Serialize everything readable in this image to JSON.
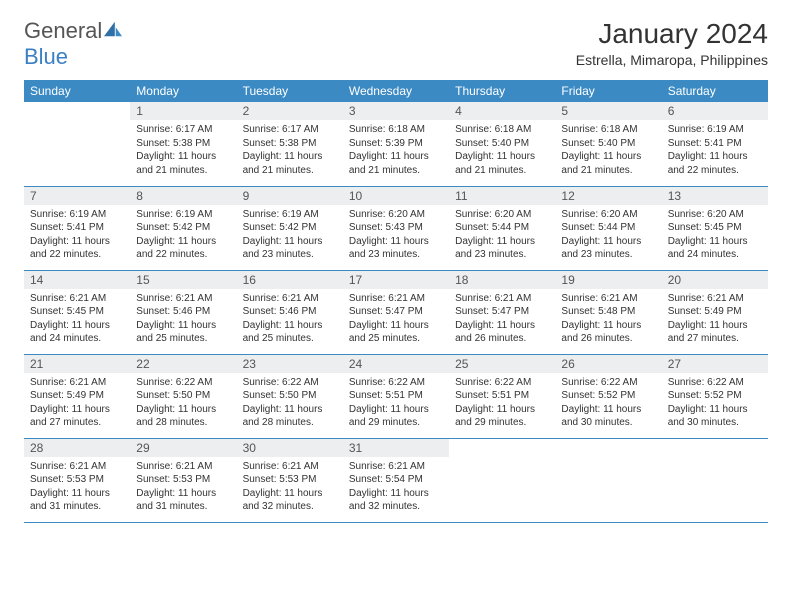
{
  "brand": {
    "text1": "General",
    "text2": "Blue"
  },
  "title": "January 2024",
  "subtitle": "Estrella, Mimaropa, Philippines",
  "colors": {
    "header_bg": "#3b8ac4",
    "header_fg": "#ffffff",
    "daynum_bg": "#eceeef",
    "rule": "#3b8ac4",
    "logo_blue": "#3b7fc4"
  },
  "weekdays": [
    "Sunday",
    "Monday",
    "Tuesday",
    "Wednesday",
    "Thursday",
    "Friday",
    "Saturday"
  ],
  "weeks": [
    [
      {
        "n": "",
        "sr": "",
        "ss": "",
        "dl": ""
      },
      {
        "n": "1",
        "sr": "Sunrise: 6:17 AM",
        "ss": "Sunset: 5:38 PM",
        "dl": "Daylight: 11 hours and 21 minutes."
      },
      {
        "n": "2",
        "sr": "Sunrise: 6:17 AM",
        "ss": "Sunset: 5:38 PM",
        "dl": "Daylight: 11 hours and 21 minutes."
      },
      {
        "n": "3",
        "sr": "Sunrise: 6:18 AM",
        "ss": "Sunset: 5:39 PM",
        "dl": "Daylight: 11 hours and 21 minutes."
      },
      {
        "n": "4",
        "sr": "Sunrise: 6:18 AM",
        "ss": "Sunset: 5:40 PM",
        "dl": "Daylight: 11 hours and 21 minutes."
      },
      {
        "n": "5",
        "sr": "Sunrise: 6:18 AM",
        "ss": "Sunset: 5:40 PM",
        "dl": "Daylight: 11 hours and 21 minutes."
      },
      {
        "n": "6",
        "sr": "Sunrise: 6:19 AM",
        "ss": "Sunset: 5:41 PM",
        "dl": "Daylight: 11 hours and 22 minutes."
      }
    ],
    [
      {
        "n": "7",
        "sr": "Sunrise: 6:19 AM",
        "ss": "Sunset: 5:41 PM",
        "dl": "Daylight: 11 hours and 22 minutes."
      },
      {
        "n": "8",
        "sr": "Sunrise: 6:19 AM",
        "ss": "Sunset: 5:42 PM",
        "dl": "Daylight: 11 hours and 22 minutes."
      },
      {
        "n": "9",
        "sr": "Sunrise: 6:19 AM",
        "ss": "Sunset: 5:42 PM",
        "dl": "Daylight: 11 hours and 23 minutes."
      },
      {
        "n": "10",
        "sr": "Sunrise: 6:20 AM",
        "ss": "Sunset: 5:43 PM",
        "dl": "Daylight: 11 hours and 23 minutes."
      },
      {
        "n": "11",
        "sr": "Sunrise: 6:20 AM",
        "ss": "Sunset: 5:44 PM",
        "dl": "Daylight: 11 hours and 23 minutes."
      },
      {
        "n": "12",
        "sr": "Sunrise: 6:20 AM",
        "ss": "Sunset: 5:44 PM",
        "dl": "Daylight: 11 hours and 23 minutes."
      },
      {
        "n": "13",
        "sr": "Sunrise: 6:20 AM",
        "ss": "Sunset: 5:45 PM",
        "dl": "Daylight: 11 hours and 24 minutes."
      }
    ],
    [
      {
        "n": "14",
        "sr": "Sunrise: 6:21 AM",
        "ss": "Sunset: 5:45 PM",
        "dl": "Daylight: 11 hours and 24 minutes."
      },
      {
        "n": "15",
        "sr": "Sunrise: 6:21 AM",
        "ss": "Sunset: 5:46 PM",
        "dl": "Daylight: 11 hours and 25 minutes."
      },
      {
        "n": "16",
        "sr": "Sunrise: 6:21 AM",
        "ss": "Sunset: 5:46 PM",
        "dl": "Daylight: 11 hours and 25 minutes."
      },
      {
        "n": "17",
        "sr": "Sunrise: 6:21 AM",
        "ss": "Sunset: 5:47 PM",
        "dl": "Daylight: 11 hours and 25 minutes."
      },
      {
        "n": "18",
        "sr": "Sunrise: 6:21 AM",
        "ss": "Sunset: 5:47 PM",
        "dl": "Daylight: 11 hours and 26 minutes."
      },
      {
        "n": "19",
        "sr": "Sunrise: 6:21 AM",
        "ss": "Sunset: 5:48 PM",
        "dl": "Daylight: 11 hours and 26 minutes."
      },
      {
        "n": "20",
        "sr": "Sunrise: 6:21 AM",
        "ss": "Sunset: 5:49 PM",
        "dl": "Daylight: 11 hours and 27 minutes."
      }
    ],
    [
      {
        "n": "21",
        "sr": "Sunrise: 6:21 AM",
        "ss": "Sunset: 5:49 PM",
        "dl": "Daylight: 11 hours and 27 minutes."
      },
      {
        "n": "22",
        "sr": "Sunrise: 6:22 AM",
        "ss": "Sunset: 5:50 PM",
        "dl": "Daylight: 11 hours and 28 minutes."
      },
      {
        "n": "23",
        "sr": "Sunrise: 6:22 AM",
        "ss": "Sunset: 5:50 PM",
        "dl": "Daylight: 11 hours and 28 minutes."
      },
      {
        "n": "24",
        "sr": "Sunrise: 6:22 AM",
        "ss": "Sunset: 5:51 PM",
        "dl": "Daylight: 11 hours and 29 minutes."
      },
      {
        "n": "25",
        "sr": "Sunrise: 6:22 AM",
        "ss": "Sunset: 5:51 PM",
        "dl": "Daylight: 11 hours and 29 minutes."
      },
      {
        "n": "26",
        "sr": "Sunrise: 6:22 AM",
        "ss": "Sunset: 5:52 PM",
        "dl": "Daylight: 11 hours and 30 minutes."
      },
      {
        "n": "27",
        "sr": "Sunrise: 6:22 AM",
        "ss": "Sunset: 5:52 PM",
        "dl": "Daylight: 11 hours and 30 minutes."
      }
    ],
    [
      {
        "n": "28",
        "sr": "Sunrise: 6:21 AM",
        "ss": "Sunset: 5:53 PM",
        "dl": "Daylight: 11 hours and 31 minutes."
      },
      {
        "n": "29",
        "sr": "Sunrise: 6:21 AM",
        "ss": "Sunset: 5:53 PM",
        "dl": "Daylight: 11 hours and 31 minutes."
      },
      {
        "n": "30",
        "sr": "Sunrise: 6:21 AM",
        "ss": "Sunset: 5:53 PM",
        "dl": "Daylight: 11 hours and 32 minutes."
      },
      {
        "n": "31",
        "sr": "Sunrise: 6:21 AM",
        "ss": "Sunset: 5:54 PM",
        "dl": "Daylight: 11 hours and 32 minutes."
      },
      {
        "n": "",
        "sr": "",
        "ss": "",
        "dl": ""
      },
      {
        "n": "",
        "sr": "",
        "ss": "",
        "dl": ""
      },
      {
        "n": "",
        "sr": "",
        "ss": "",
        "dl": ""
      }
    ]
  ]
}
